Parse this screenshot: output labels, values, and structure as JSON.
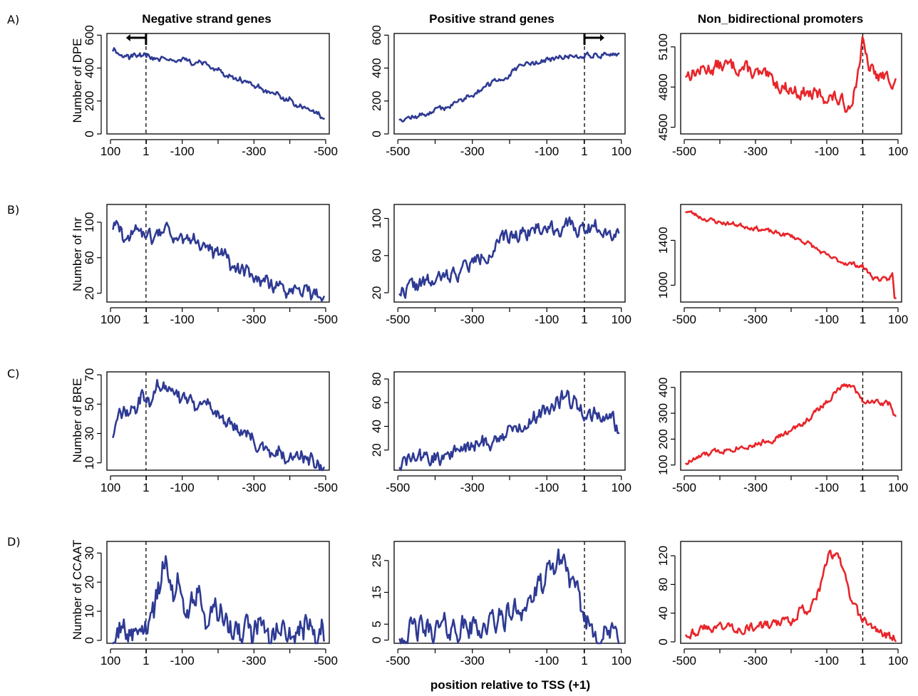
{
  "colors": {
    "blue": "#2e3a93",
    "red": "#e8252a",
    "axis": "#000000"
  },
  "column_titles": [
    "Negative strand genes",
    "Positive strand genes",
    "Non_bidirectional promoters"
  ],
  "row_labels": [
    "A)",
    "B)",
    "C)",
    "D)"
  ],
  "row_ylabels": [
    "Number of DPE",
    "Number of Inr",
    "Number of BRE",
    "Number of CCAAT"
  ],
  "xlabel": "position relative to TSS (+1)",
  "chart_data": [
    {
      "id": "A-neg",
      "type": "line",
      "row": 0,
      "col": 0,
      "ylabel": "Number of DPE",
      "xlim": [
        110,
        -510
      ],
      "ylim": [
        0,
        610
      ],
      "xticks": [
        100,
        1,
        -100,
        -300,
        -500
      ],
      "xtick_labels": [
        "100",
        "1",
        "-100",
        "-300",
        "-500"
      ],
      "yticks": [
        0,
        200,
        400,
        600
      ],
      "color": "blue",
      "tss_marker": "arrow-left",
      "noise": 0.05,
      "seed": 11,
      "keypoints": [
        [
          100,
          470
        ],
        [
          90,
          520
        ],
        [
          70,
          490
        ],
        [
          50,
          475
        ],
        [
          20,
          480
        ],
        [
          1,
          470
        ],
        [
          -30,
          455
        ],
        [
          -80,
          450
        ],
        [
          -130,
          445
        ],
        [
          -170,
          420
        ],
        [
          -230,
          345
        ],
        [
          -280,
          325
        ],
        [
          -330,
          270
        ],
        [
          -380,
          220
        ],
        [
          -430,
          170
        ],
        [
          -470,
          140
        ],
        [
          -495,
          100
        ]
      ]
    },
    {
      "id": "A-pos",
      "type": "line",
      "row": 0,
      "col": 1,
      "xlim": [
        -510,
        110
      ],
      "ylim": [
        0,
        610
      ],
      "xticks": [
        -500,
        -300,
        -100,
        1,
        100
      ],
      "xtick_labels": [
        "-500",
        "-300",
        "-100",
        "1",
        "100"
      ],
      "yticks": [
        0,
        200,
        400,
        600
      ],
      "color": "blue",
      "tss_marker": "arrow-right",
      "noise": 0.05,
      "seed": 12,
      "keypoints": [
        [
          -495,
          95
        ],
        [
          -450,
          105
        ],
        [
          -400,
          140
        ],
        [
          -350,
          180
        ],
        [
          -300,
          245
        ],
        [
          -250,
          300
        ],
        [
          -200,
          360
        ],
        [
          -160,
          420
        ],
        [
          -120,
          440
        ],
        [
          -80,
          455
        ],
        [
          -40,
          470
        ],
        [
          1,
          480
        ],
        [
          40,
          480
        ],
        [
          90,
          490
        ]
      ]
    },
    {
      "id": "A-nb",
      "type": "line",
      "row": 0,
      "col": 2,
      "xlim": [
        -510,
        110
      ],
      "ylim": [
        4450,
        5200
      ],
      "xticks": [
        -500,
        -300,
        -100,
        1,
        100
      ],
      "xtick_labels": [
        "-500",
        "-300",
        "-100",
        "1",
        "100"
      ],
      "yticks": [
        4500,
        4800,
        5100
      ],
      "color": "red",
      "noise": 0.12,
      "seed": 13,
      "keypoints": [
        [
          -490,
          4900
        ],
        [
          -400,
          4960
        ],
        [
          -340,
          4950
        ],
        [
          -300,
          4900
        ],
        [
          -200,
          4780
        ],
        [
          -140,
          4740
        ],
        [
          -80,
          4720
        ],
        [
          -40,
          4650
        ],
        [
          -20,
          4800
        ],
        [
          0,
          5130
        ],
        [
          15,
          4960
        ],
        [
          40,
          4880
        ],
        [
          80,
          4860
        ]
      ]
    },
    {
      "id": "B-neg",
      "type": "line",
      "row": 1,
      "col": 0,
      "ylabel": "Number of Inr",
      "xlim": [
        110,
        -510
      ],
      "ylim": [
        10,
        120
      ],
      "xticks": [
        100,
        1,
        -100,
        -300,
        -500
      ],
      "xtick_labels": [
        "100",
        "1",
        "-100",
        "-300",
        "-500"
      ],
      "yticks": [
        20,
        60,
        100
      ],
      "color": "blue",
      "noise": 0.14,
      "seed": 21,
      "keypoints": [
        [
          100,
          88
        ],
        [
          75,
          95
        ],
        [
          50,
          85
        ],
        [
          20,
          88
        ],
        [
          1,
          90
        ],
        [
          -40,
          88
        ],
        [
          -90,
          86
        ],
        [
          -140,
          82
        ],
        [
          -180,
          70
        ],
        [
          -230,
          58
        ],
        [
          -280,
          45
        ],
        [
          -330,
          33
        ],
        [
          -380,
          26
        ],
        [
          -430,
          24
        ],
        [
          -490,
          20
        ]
      ]
    },
    {
      "id": "B-pos",
      "type": "line",
      "row": 1,
      "col": 1,
      "xlim": [
        -510,
        110
      ],
      "ylim": [
        10,
        115
      ],
      "xticks": [
        -500,
        -300,
        -100,
        1,
        100
      ],
      "xtick_labels": [
        "-500",
        "-300",
        "-100",
        "1",
        "100"
      ],
      "yticks": [
        20,
        60,
        100
      ],
      "color": "blue",
      "noise": 0.14,
      "seed": 22,
      "keypoints": [
        [
          -495,
          22
        ],
        [
          -450,
          28
        ],
        [
          -400,
          32
        ],
        [
          -350,
          40
        ],
        [
          -300,
          52
        ],
        [
          -250,
          66
        ],
        [
          -200,
          80
        ],
        [
          -150,
          88
        ],
        [
          -100,
          90
        ],
        [
          -50,
          90
        ],
        [
          1,
          90
        ],
        [
          50,
          92
        ],
        [
          90,
          82
        ]
      ]
    },
    {
      "id": "B-nb",
      "type": "line",
      "row": 1,
      "col": 2,
      "xlim": [
        -510,
        110
      ],
      "ylim": [
        850,
        1720
      ],
      "xticks": [
        -500,
        -300,
        -100,
        1,
        100
      ],
      "xtick_labels": [
        "-500",
        "-300",
        "-100",
        "1",
        "100"
      ],
      "yticks": [
        1000,
        1400
      ],
      "color": "red",
      "noise": 0.04,
      "seed": 23,
      "keypoints": [
        [
          -490,
          1660
        ],
        [
          -450,
          1600
        ],
        [
          -400,
          1560
        ],
        [
          -350,
          1540
        ],
        [
          -300,
          1510
        ],
        [
          -250,
          1470
        ],
        [
          -200,
          1440
        ],
        [
          -150,
          1370
        ],
        [
          -100,
          1260
        ],
        [
          -60,
          1210
        ],
        [
          0,
          1170
        ],
        [
          30,
          1070
        ],
        [
          70,
          1040
        ],
        [
          85,
          1100
        ],
        [
          90,
          880
        ]
      ]
    },
    {
      "id": "C-neg",
      "type": "line",
      "row": 2,
      "col": 0,
      "ylabel": "Number of BRE",
      "xlim": [
        110,
        -510
      ],
      "ylim": [
        5,
        72
      ],
      "xticks": [
        100,
        1,
        -100,
        -300,
        -500
      ],
      "xtick_labels": [
        "100",
        "1",
        "-100",
        "-300",
        "-500"
      ],
      "yticks": [
        10,
        30,
        50,
        70
      ],
      "color": "blue",
      "noise": 0.13,
      "seed": 31,
      "keypoints": [
        [
          100,
          28
        ],
        [
          80,
          40
        ],
        [
          40,
          45
        ],
        [
          10,
          55
        ],
        [
          1,
          52
        ],
        [
          -30,
          62
        ],
        [
          -70,
          60
        ],
        [
          -110,
          56
        ],
        [
          -150,
          52
        ],
        [
          -200,
          42
        ],
        [
          -250,
          32
        ],
        [
          -300,
          24
        ],
        [
          -350,
          17
        ],
        [
          -400,
          14
        ],
        [
          -450,
          11
        ],
        [
          -495,
          9
        ]
      ]
    },
    {
      "id": "C-pos",
      "type": "line",
      "row": 2,
      "col": 1,
      "xlim": [
        -510,
        110
      ],
      "ylim": [
        3,
        86
      ],
      "xticks": [
        -500,
        -300,
        -100,
        1,
        100
      ],
      "xtick_labels": [
        "-500",
        "-300",
        "-100",
        "1",
        "100"
      ],
      "yticks": [
        20,
        40,
        60,
        80
      ],
      "color": "blue",
      "noise": 0.15,
      "seed": 32,
      "keypoints": [
        [
          -495,
          8
        ],
        [
          -450,
          13
        ],
        [
          -400,
          13
        ],
        [
          -350,
          18
        ],
        [
          -300,
          23
        ],
        [
          -250,
          28
        ],
        [
          -200,
          35
        ],
        [
          -150,
          45
        ],
        [
          -100,
          55
        ],
        [
          -60,
          64
        ],
        [
          -20,
          60
        ],
        [
          1,
          52
        ],
        [
          40,
          50
        ],
        [
          90,
          40
        ]
      ]
    },
    {
      "id": "C-nb",
      "type": "line",
      "row": 2,
      "col": 2,
      "xlim": [
        -510,
        110
      ],
      "ylim": [
        80,
        460
      ],
      "xticks": [
        -500,
        -300,
        -100,
        1,
        100
      ],
      "xtick_labels": [
        "-500",
        "-300",
        "-100",
        "1",
        "100"
      ],
      "yticks": [
        100,
        200,
        300,
        400
      ],
      "color": "red",
      "noise": 0.05,
      "seed": 33,
      "keypoints": [
        [
          -490,
          110
        ],
        [
          -450,
          135
        ],
        [
          -400,
          155
        ],
        [
          -350,
          170
        ],
        [
          -300,
          180
        ],
        [
          -250,
          200
        ],
        [
          -200,
          230
        ],
        [
          -150,
          280
        ],
        [
          -100,
          345
        ],
        [
          -60,
          400
        ],
        [
          -30,
          410
        ],
        [
          1,
          350
        ],
        [
          40,
          345
        ],
        [
          80,
          335
        ],
        [
          90,
          290
        ]
      ]
    },
    {
      "id": "D-neg",
      "type": "line",
      "row": 3,
      "col": 0,
      "ylabel": "Number of CCAAT",
      "xlim": [
        110,
        -510
      ],
      "ylim": [
        -1,
        34
      ],
      "xticks": [
        100,
        1,
        -100,
        -300,
        -500
      ],
      "xtick_labels": [
        "100",
        "1",
        "-100",
        "-300",
        "-500"
      ],
      "yticks": [
        0,
        10,
        20,
        30
      ],
      "color": "blue",
      "noise": 0.25,
      "seed": 41,
      "keypoints": [
        [
          100,
          2
        ],
        [
          60,
          3
        ],
        [
          30,
          4
        ],
        [
          1,
          6
        ],
        [
          -25,
          13
        ],
        [
          -50,
          25
        ],
        [
          -80,
          18
        ],
        [
          -110,
          14
        ],
        [
          -150,
          12
        ],
        [
          -190,
          9
        ],
        [
          -220,
          7
        ],
        [
          -260,
          5
        ],
        [
          -300,
          3
        ],
        [
          -350,
          2
        ],
        [
          -420,
          2
        ],
        [
          -495,
          2
        ]
      ]
    },
    {
      "id": "D-pos",
      "type": "line",
      "row": 3,
      "col": 1,
      "xlim": [
        -510,
        110
      ],
      "ylim": [
        -1,
        31
      ],
      "xticks": [
        -500,
        -300,
        -100,
        1,
        100
      ],
      "xtick_labels": [
        "-500",
        "-300",
        "-100",
        "1",
        "100"
      ],
      "yticks": [
        0,
        5,
        15,
        25
      ],
      "color": "blue",
      "noise": 0.22,
      "seed": 42,
      "keypoints": [
        [
          -495,
          2
        ],
        [
          -450,
          3
        ],
        [
          -400,
          3
        ],
        [
          -350,
          4
        ],
        [
          -300,
          4
        ],
        [
          -250,
          5
        ],
        [
          -200,
          8
        ],
        [
          -150,
          12
        ],
        [
          -110,
          17
        ],
        [
          -75,
          24
        ],
        [
          -55,
          26
        ],
        [
          -30,
          16
        ],
        [
          1,
          7
        ],
        [
          40,
          2
        ],
        [
          90,
          1
        ]
      ]
    },
    {
      "id": "D-nb",
      "type": "line",
      "row": 3,
      "col": 2,
      "xlim": [
        -510,
        110
      ],
      "ylim": [
        -2,
        140
      ],
      "xticks": [
        -500,
        -300,
        -100,
        1,
        100
      ],
      "xtick_labels": [
        "-500",
        "-300",
        "-100",
        "1",
        "100"
      ],
      "yticks": [
        0,
        40,
        80,
        120
      ],
      "color": "red",
      "noise": 0.08,
      "seed": 43,
      "keypoints": [
        [
          -490,
          12
        ],
        [
          -450,
          18
        ],
        [
          -400,
          22
        ],
        [
          -350,
          20
        ],
        [
          -300,
          20
        ],
        [
          -250,
          24
        ],
        [
          -200,
          30
        ],
        [
          -175,
          45
        ],
        [
          -150,
          45
        ],
        [
          -120,
          75
        ],
        [
          -95,
          120
        ],
        [
          -70,
          118
        ],
        [
          -55,
          105
        ],
        [
          -35,
          60
        ],
        [
          -10,
          35
        ],
        [
          1,
          32
        ],
        [
          30,
          18
        ],
        [
          60,
          12
        ],
        [
          90,
          5
        ]
      ]
    }
  ]
}
